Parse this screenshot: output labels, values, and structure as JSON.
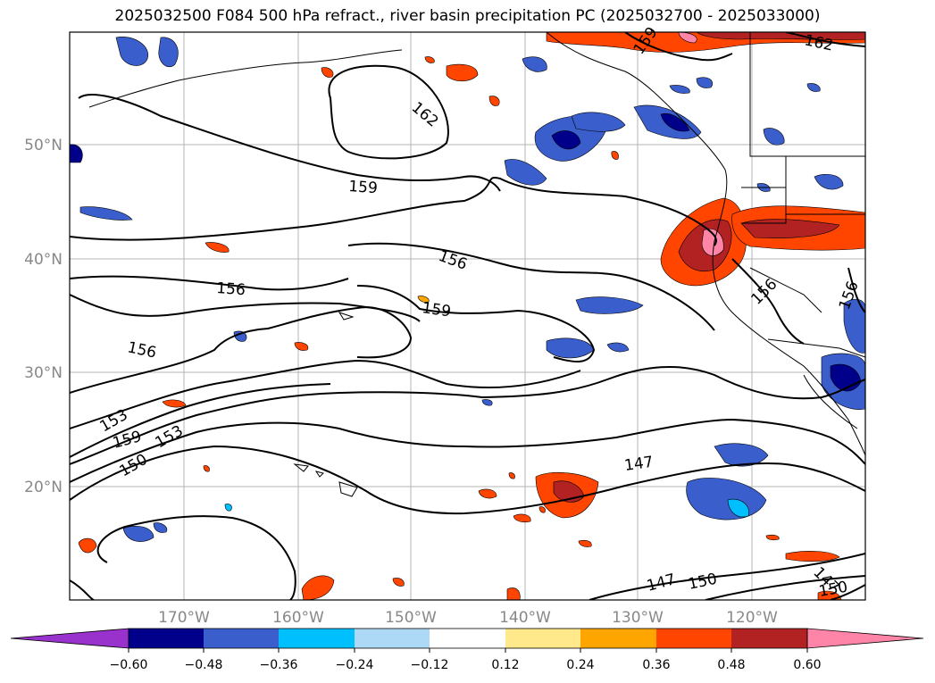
{
  "title": "2025032500 F084 500 hPa refract., river basin precipitation PC (2025032700 - 2025033000)",
  "map": {
    "lat_ticks": [
      "50°N",
      "40°N",
      "30°N",
      "20°N"
    ],
    "lon_ticks": [
      "170°W",
      "160°W",
      "150°W",
      "140°W",
      "130°W",
      "120°W"
    ],
    "contour_labels": [
      "162",
      "159",
      "162",
      "159",
      "156",
      "156",
      "156",
      "159",
      "156",
      "156",
      "153",
      "159",
      "153",
      "150",
      "147",
      "147",
      "150",
      "147",
      "150"
    ]
  },
  "colorbar": {
    "ticks": [
      "−0.60",
      "−0.48",
      "−0.36",
      "−0.24",
      "−0.12",
      "0.12",
      "0.24",
      "0.36",
      "0.48",
      "0.60"
    ],
    "colors": [
      "#9932cc",
      "#00008b",
      "#3a5fcd",
      "#00bfff",
      "#add8f6",
      "#ffffff",
      "#ffe98a",
      "#ffa500",
      "#ff4500",
      "#b22222",
      "#ff85a8"
    ]
  }
}
